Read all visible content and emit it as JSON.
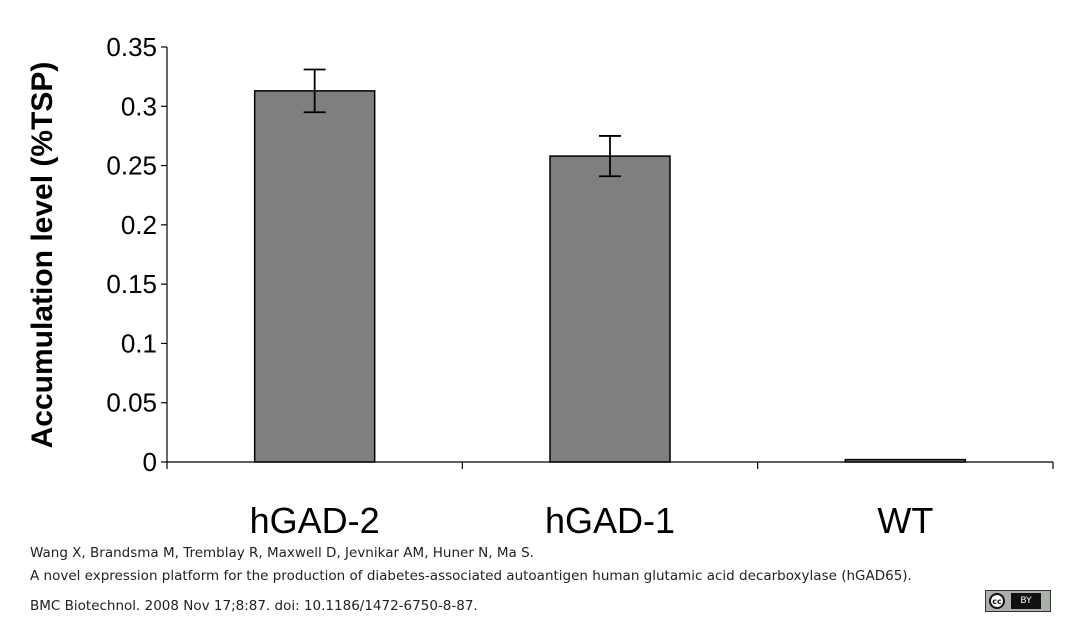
{
  "chart_data": {
    "type": "bar",
    "categories": [
      "hGAD-2",
      "hGAD-1",
      "WT"
    ],
    "values": [
      0.313,
      0.258,
      0.002
    ],
    "error": [
      0.018,
      0.017,
      0.0
    ],
    "ylabel": "Accumulation level (%TSP)",
    "xlabel": "",
    "ylim": [
      0,
      0.35
    ],
    "yticks": [
      "0",
      "0.05",
      "0.1",
      "0.15",
      "0.2",
      "0.25",
      "0.3",
      "0.35"
    ],
    "ytick_values": [
      0,
      0.05,
      0.1,
      0.15,
      0.2,
      0.25,
      0.3,
      0.35
    ],
    "grid": false,
    "bar_color": "#7f7f7f"
  },
  "citation": {
    "authors": "Wang X, Brandsma M, Tremblay R, Maxwell D, Jevnikar AM, Huner N, Ma S.",
    "title": "A novel expression platform for the production of diabetes-associated autoantigen human glutamic acid decarboxylase (hGAD65).",
    "source": "BMC Biotechnol. 2008 Nov 17;8:87. doi: 10.1186/1472-6750-8-87."
  },
  "license_badge": {
    "icon": "creative-commons-by-icon",
    "cc_text": "cc",
    "by_text": "BY"
  }
}
